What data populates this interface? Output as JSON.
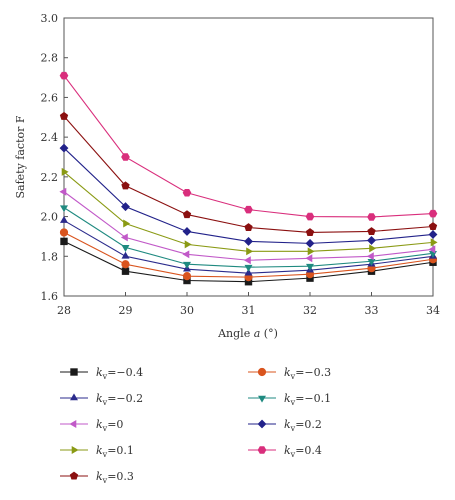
{
  "chart_data": {
    "type": "line",
    "title": "",
    "xlabel_prefix": "Angle ",
    "xlabel_var": "a",
    "xlabel_suffix": " (°)",
    "ylabel": "Safety factor F",
    "x": [
      28,
      29,
      30,
      31,
      32,
      33,
      34
    ],
    "xlim": [
      28,
      34
    ],
    "ylim": [
      1.6,
      3.0
    ],
    "x_ticks": [
      "28",
      "29",
      "30",
      "31",
      "32",
      "33",
      "34"
    ],
    "y_ticks": [
      "1.6",
      "1.8",
      "2.0",
      "2.2",
      "2.4",
      "2.6",
      "2.8",
      "3.0"
    ],
    "grid": false,
    "legend_position": "bottom",
    "series": [
      {
        "name": "-0.4",
        "color": "#1a1a1a",
        "marker": "square",
        "values": [
          1.875,
          1.725,
          1.678,
          1.672,
          1.69,
          1.725,
          1.77
        ]
      },
      {
        "name": "-0.3",
        "color": "#d9541e",
        "marker": "circle",
        "values": [
          1.92,
          1.76,
          1.7,
          1.695,
          1.71,
          1.74,
          1.785
        ]
      },
      {
        "name": "-0.2",
        "color": "#2b2b8c",
        "marker": "triangle-up",
        "values": [
          1.98,
          1.8,
          1.735,
          1.715,
          1.73,
          1.76,
          1.8
        ]
      },
      {
        "name": "-0.1",
        "color": "#1f8a80",
        "marker": "triangle-down",
        "values": [
          2.045,
          1.845,
          1.76,
          1.745,
          1.75,
          1.775,
          1.815
        ]
      },
      {
        "name": "0",
        "color": "#c159c8",
        "marker": "triangle-left",
        "values": [
          2.125,
          1.895,
          1.81,
          1.78,
          1.79,
          1.8,
          1.835
        ]
      },
      {
        "name": "0.2",
        "color": "#22228a",
        "marker": "diamond",
        "values": [
          2.345,
          2.05,
          1.925,
          1.875,
          1.865,
          1.88,
          1.91
        ]
      },
      {
        "name": "0.1",
        "color": "#8a9a14",
        "marker": "triangle-right",
        "values": [
          2.225,
          1.965,
          1.86,
          1.825,
          1.825,
          1.84,
          1.87
        ]
      },
      {
        "name": "0.4",
        "color": "#d92e7c",
        "marker": "hexagon",
        "values": [
          2.71,
          2.3,
          2.12,
          2.035,
          2.0,
          1.998,
          2.015
        ]
      },
      {
        "name": "0.3",
        "color": "#8b1010",
        "marker": "pentagon",
        "values": [
          2.505,
          2.155,
          2.01,
          1.945,
          1.92,
          1.925,
          1.95
        ]
      }
    ],
    "legend_var": "k",
    "legend_sub": "v",
    "legend_eq": "="
  }
}
